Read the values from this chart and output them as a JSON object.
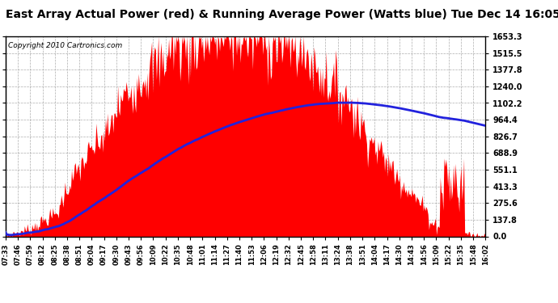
{
  "title": "East Array Actual Power (red) & Running Average Power (Watts blue) Tue Dec 14 16:05",
  "copyright": "Copyright 2010 Cartronics.com",
  "yticks": [
    0.0,
    137.8,
    275.6,
    413.3,
    551.1,
    688.9,
    826.7,
    964.4,
    1102.2,
    1240.0,
    1377.8,
    1515.5,
    1653.3
  ],
  "ymax": 1653.3,
  "ymin": 0.0,
  "bar_color": "#ff0000",
  "avg_color": "#2222dd",
  "bg_color": "#ffffff",
  "grid_color": "#999999",
  "title_fontsize": 10,
  "copyright_fontsize": 6.5,
  "n_points": 510,
  "x_labels": [
    "07:33",
    "07:46",
    "07:59",
    "08:12",
    "08:25",
    "08:38",
    "08:51",
    "09:04",
    "09:17",
    "09:30",
    "09:43",
    "09:56",
    "10:09",
    "10:22",
    "10:35",
    "10:48",
    "11:01",
    "11:14",
    "11:27",
    "11:40",
    "11:53",
    "12:06",
    "12:19",
    "12:32",
    "12:45",
    "12:58",
    "13:11",
    "13:24",
    "13:38",
    "13:51",
    "14:04",
    "14:17",
    "14:30",
    "14:43",
    "14:56",
    "15:09",
    "15:22",
    "15:35",
    "15:48",
    "16:02"
  ]
}
